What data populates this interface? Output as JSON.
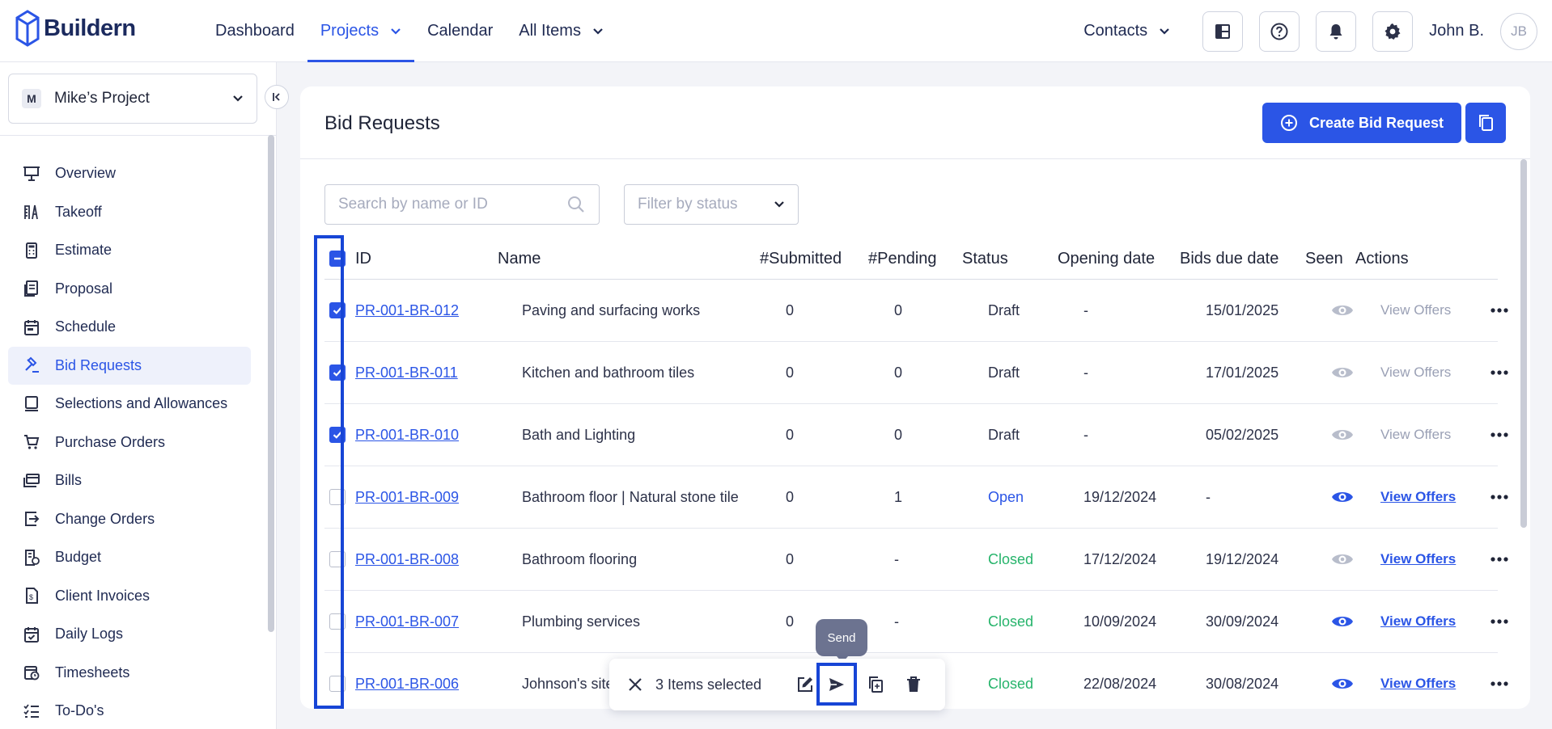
{
  "brand": {
    "name": "Buildern"
  },
  "nav": {
    "items": [
      {
        "label": "Dashboard",
        "dropdown": false,
        "active": false
      },
      {
        "label": "Projects",
        "dropdown": true,
        "active": true
      },
      {
        "label": "Calendar",
        "dropdown": false,
        "active": false
      },
      {
        "label": "All Items",
        "dropdown": true,
        "active": false
      }
    ],
    "contacts_label": "Contacts",
    "username": "John B.",
    "avatar_initials": "JB",
    "icons": [
      "layout-icon",
      "help-icon",
      "bell-icon",
      "gear-icon"
    ]
  },
  "sidebar": {
    "project": {
      "badge": "M",
      "name": "Mike’s Project"
    },
    "items": [
      {
        "label": "Overview",
        "icon": "presentation-icon"
      },
      {
        "label": "Takeoff",
        "icon": "ruler-icon"
      },
      {
        "label": "Estimate",
        "icon": "calculator-icon"
      },
      {
        "label": "Proposal",
        "icon": "proposal-icon"
      },
      {
        "label": "Schedule",
        "icon": "calendar-icon"
      },
      {
        "label": "Bid Requests",
        "icon": "gavel-icon",
        "active": true
      },
      {
        "label": "Selections and Allowances",
        "icon": "selections-icon"
      },
      {
        "label": "Purchase Orders",
        "icon": "cart-icon"
      },
      {
        "label": "Bills",
        "icon": "bills-icon"
      },
      {
        "label": "Change Orders",
        "icon": "change-orders-icon"
      },
      {
        "label": "Budget",
        "icon": "budget-icon"
      },
      {
        "label": "Client Invoices",
        "icon": "invoice-icon"
      },
      {
        "label": "Daily Logs",
        "icon": "daily-log-icon"
      },
      {
        "label": "Timesheets",
        "icon": "timesheet-icon"
      },
      {
        "label": "To-Do's",
        "icon": "todo-icon"
      }
    ]
  },
  "main": {
    "title": "Bid Requests",
    "create_button": "Create Bid Request",
    "search": {
      "placeholder": "Search by name or ID",
      "value": ""
    },
    "filter": {
      "placeholder": "Filter by status"
    },
    "columns": [
      "ID",
      "Name",
      "#Submitted",
      "#Pending",
      "Status",
      "Opening date",
      "Bids due date",
      "Seen",
      "Actions"
    ],
    "rows": [
      {
        "checked": true,
        "id": "PR-001-BR-012",
        "name": "Paving and surfacing works",
        "submitted": "0",
        "pending": "0",
        "status": "Draft",
        "opening": "-",
        "due": "15/01/2025",
        "seen": false,
        "view_offers": "View Offers",
        "offers_enabled": false
      },
      {
        "checked": true,
        "id": "PR-001-BR-011",
        "name": "Kitchen and bathroom tiles",
        "submitted": "0",
        "pending": "0",
        "status": "Draft",
        "opening": "-",
        "due": "17/01/2025",
        "seen": false,
        "view_offers": "View Offers",
        "offers_enabled": false
      },
      {
        "checked": true,
        "id": "PR-001-BR-010",
        "name": "Bath and Lighting",
        "submitted": "0",
        "pending": "0",
        "status": "Draft",
        "opening": "-",
        "due": "05/02/2025",
        "seen": false,
        "view_offers": "View Offers",
        "offers_enabled": false
      },
      {
        "checked": false,
        "id": "PR-001-BR-009",
        "name": "Bathroom floor | Natural stone tile",
        "submitted": "0",
        "pending": "1",
        "status": "Open",
        "opening": "19/12/2024",
        "due": "-",
        "seen": true,
        "view_offers": "View Offers",
        "offers_enabled": true
      },
      {
        "checked": false,
        "id": "PR-001-BR-008",
        "name": "Bathroom flooring",
        "submitted": "0",
        "pending": "-",
        "status": "Closed",
        "opening": "17/12/2024",
        "due": "19/12/2024",
        "seen": false,
        "view_offers": "View Offers",
        "offers_enabled": true
      },
      {
        "checked": false,
        "id": "PR-001-BR-007",
        "name": "Plumbing services",
        "submitted": "0",
        "pending": "-",
        "status": "Closed",
        "opening": "10/09/2024",
        "due": "30/09/2024",
        "seen": true,
        "view_offers": "View Offers",
        "offers_enabled": true
      },
      {
        "checked": false,
        "id": "PR-001-BR-006",
        "name": "Johnson's site pre",
        "submitted": "",
        "pending": "",
        "status": "Closed",
        "opening": "22/08/2024",
        "due": "30/08/2024",
        "seen": true,
        "view_offers": "View Offers",
        "offers_enabled": true
      }
    ]
  },
  "bulk_bar": {
    "selected_text": "3 Items selected",
    "tooltip": "Send",
    "actions": [
      "edit-icon",
      "send-icon",
      "duplicate-icon",
      "trash-icon"
    ]
  },
  "colors": {
    "accent": "#2b55e6",
    "closed": "#26b46b",
    "highlight": "#1745d6"
  }
}
